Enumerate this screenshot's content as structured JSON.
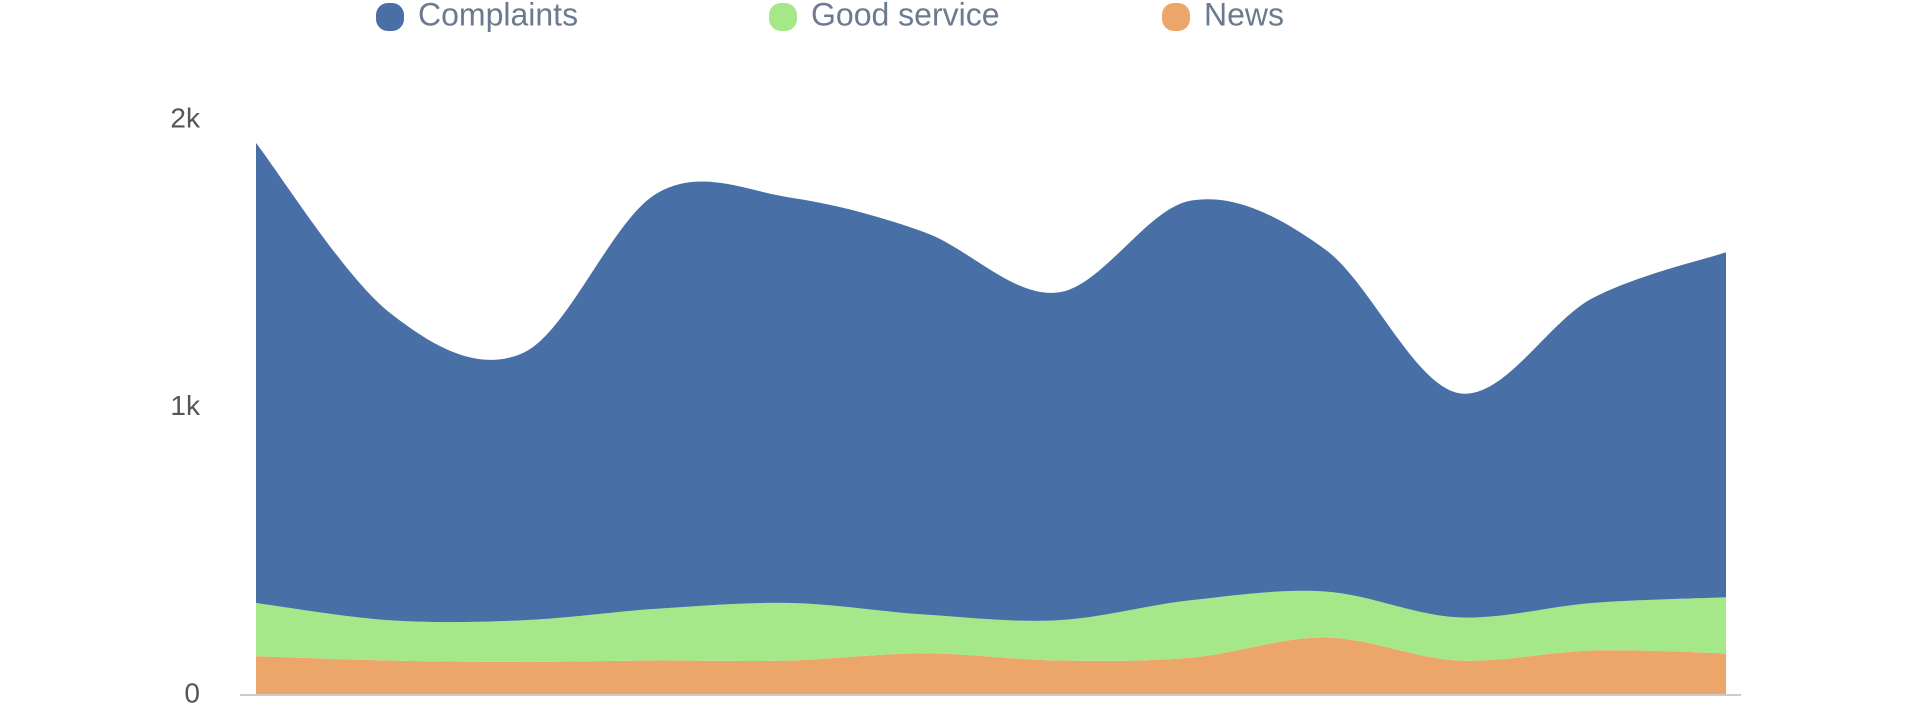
{
  "chart_data": {
    "type": "stacked-area",
    "categories": [
      null,
      null,
      null,
      null,
      null,
      null,
      null,
      null,
      null,
      null,
      null,
      null
    ],
    "series": [
      {
        "name": "Complaints",
        "color": "#4870a6",
        "values": [
          1600,
          1070,
          930,
          1445,
          1410,
          1330,
          1140,
          1390,
          1190,
          780,
          1060,
          1200
        ]
      },
      {
        "name": "Good service",
        "color": "#a5e88a",
        "values": [
          185,
          140,
          145,
          180,
          200,
          135,
          140,
          200,
          160,
          150,
          165,
          195
        ]
      },
      {
        "name": "News",
        "color": "#eca66a",
        "values": [
          135,
          120,
          115,
          120,
          120,
          145,
          120,
          130,
          200,
          120,
          155,
          145
        ]
      }
    ],
    "ylim": [
      0,
      2000
    ],
    "yticks": [
      0,
      {
        "value": 1000,
        "label": "1k"
      },
      {
        "value": 2000,
        "label": "2k"
      }
    ],
    "grid": false
  }
}
